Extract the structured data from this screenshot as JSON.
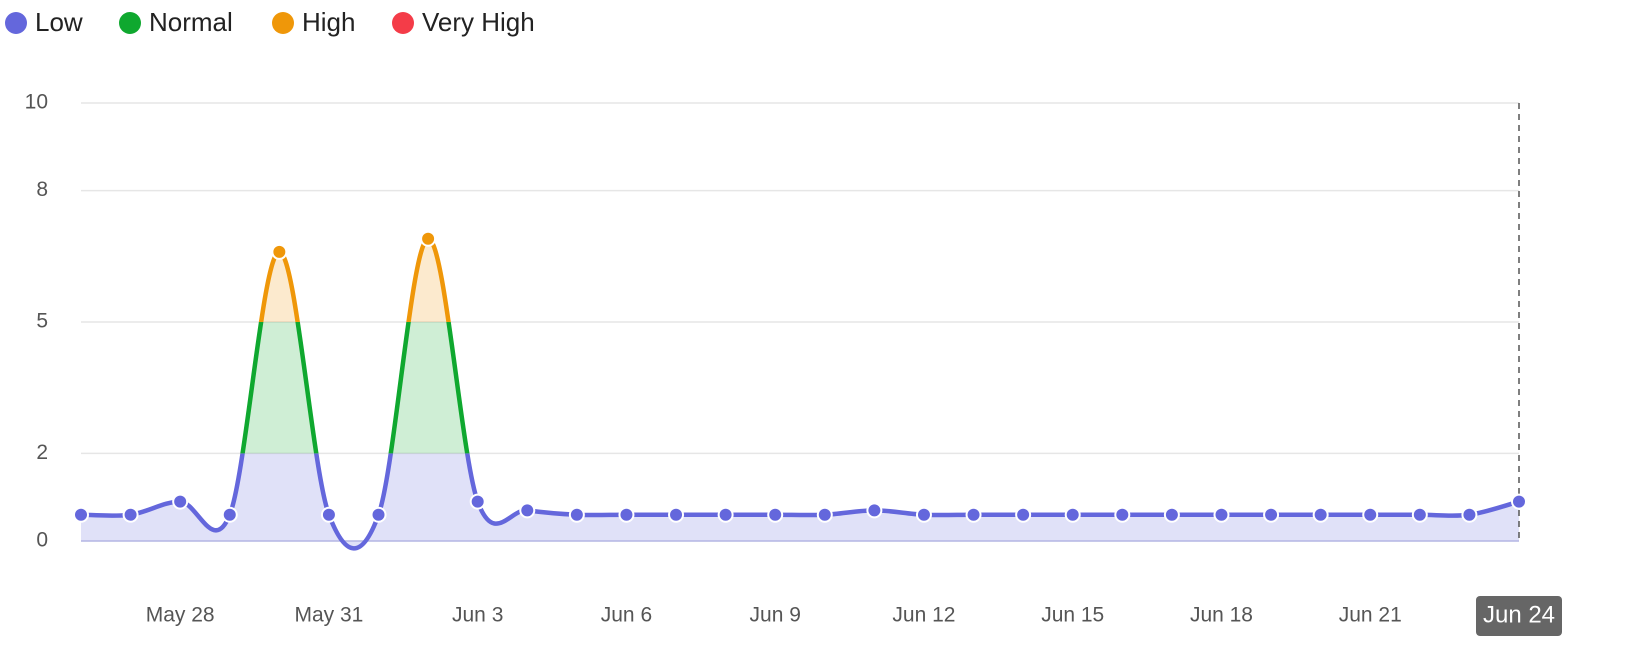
{
  "chart_data": {
    "type": "line",
    "categories": [
      null,
      null,
      "May 28",
      null,
      null,
      "May 31",
      null,
      null,
      "Jun 3",
      null,
      null,
      "Jun 6",
      null,
      null,
      "Jun 9",
      null,
      null,
      "Jun 12",
      null,
      null,
      "Jun 15",
      null,
      null,
      "Jun 18",
      null,
      null,
      "Jun 21",
      null,
      null,
      "Jun 24"
    ],
    "series": [
      {
        "values": [
          0.6,
          0.6,
          0.9,
          0.6,
          6.6,
          0.6,
          0.6,
          6.9,
          0.9,
          0.7,
          0.6,
          0.6,
          0.6,
          0.6,
          0.6,
          0.6,
          0.7,
          0.6,
          0.6,
          0.6,
          0.6,
          0.6,
          0.6,
          0.6,
          0.6,
          0.6,
          0.6,
          0.6,
          0.6,
          0.9
        ]
      }
    ],
    "bands": [
      {
        "name": "Low",
        "color": "#6467dc"
      },
      {
        "name": "Normal",
        "color": "#0fa82f"
      },
      {
        "name": "High",
        "color": "#ef9709"
      },
      {
        "name": "Very High",
        "color": "#f43c48"
      }
    ],
    "ylim": [
      0,
      10
    ],
    "yticks": [
      0,
      2,
      5,
      8,
      10
    ],
    "grid": true,
    "highlighted_category": 29
  }
}
